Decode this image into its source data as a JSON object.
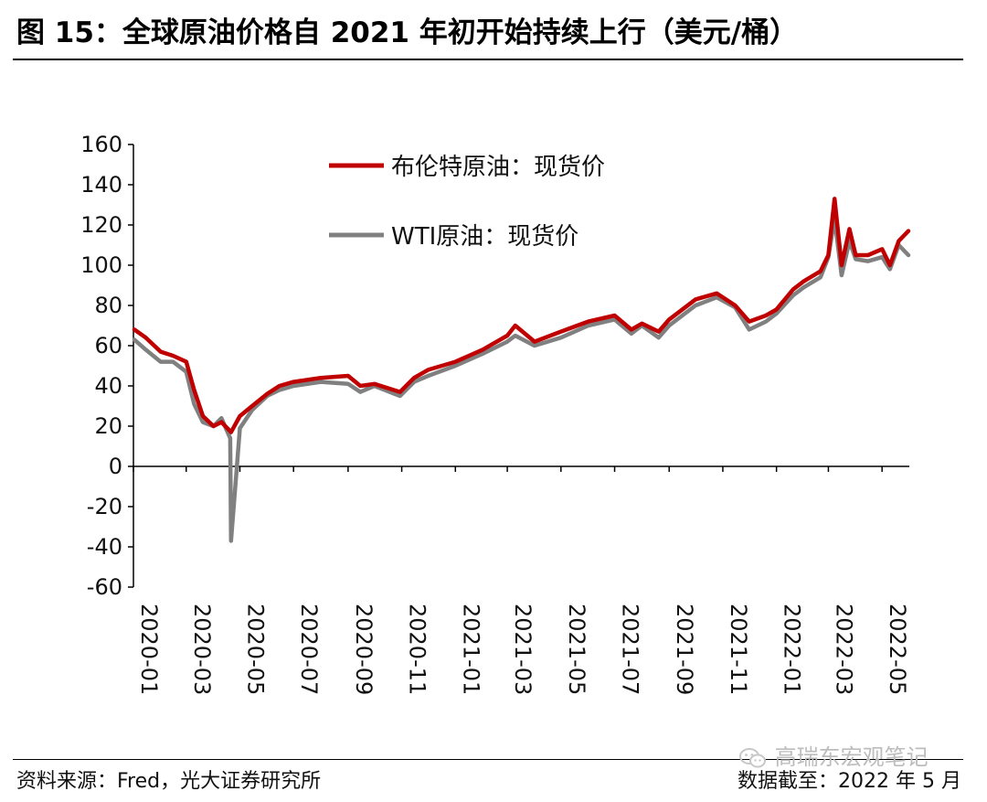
{
  "header": {
    "title": "图 15：全球原油价格自 2021 年初开始持续上行（美元/桶）"
  },
  "footer": {
    "source": "资料来源：Fred，光大证券研究所",
    "date_note": "数据截至：2022 年 5 月",
    "watermark": "高瑞东宏观笔记",
    "watermark_icon": "wechat-icon"
  },
  "colors": {
    "brent": "#c00000",
    "wti": "#808080"
  },
  "chart_data": {
    "type": "line",
    "title": "",
    "xlabel": "",
    "ylabel": "",
    "ylim": [
      -60,
      160
    ],
    "yticks": [
      "160",
      "140",
      "120",
      "100",
      "80",
      "60",
      "40",
      "20",
      "0",
      "-20",
      "-40",
      "-60"
    ],
    "xticks": [
      "2020-01",
      "2020-03",
      "2020-05",
      "2020-07",
      "2020-09",
      "2020-11",
      "2021-01",
      "2021-03",
      "2021-05",
      "2021-07",
      "2021-09",
      "2021-11",
      "2022-01",
      "2022-03",
      "2022-05"
    ],
    "legend_position": "top-left",
    "grid": false,
    "series": [
      {
        "name": "布伦特原油：现货价",
        "color": "#c00000",
        "x": [
          "2020-01-02",
          "2020-01-15",
          "2020-02-01",
          "2020-02-15",
          "2020-03-01",
          "2020-03-10",
          "2020-03-20",
          "2020-04-01",
          "2020-04-10",
          "2020-04-21",
          "2020-05-01",
          "2020-05-15",
          "2020-06-01",
          "2020-06-15",
          "2020-07-01",
          "2020-08-01",
          "2020-09-01",
          "2020-09-15",
          "2020-10-01",
          "2020-10-30",
          "2020-11-15",
          "2020-12-01",
          "2021-01-01",
          "2021-02-01",
          "2021-03-01",
          "2021-03-10",
          "2021-04-01",
          "2021-05-01",
          "2021-06-01",
          "2021-07-01",
          "2021-07-20",
          "2021-08-01",
          "2021-08-20",
          "2021-09-01",
          "2021-10-01",
          "2021-10-25",
          "2021-11-15",
          "2021-12-01",
          "2021-12-20",
          "2022-01-01",
          "2022-01-20",
          "2022-02-01",
          "2022-02-20",
          "2022-03-01",
          "2022-03-08",
          "2022-03-16",
          "2022-03-25",
          "2022-04-01",
          "2022-04-15",
          "2022-05-01",
          "2022-05-10",
          "2022-05-20",
          "2022-05-31"
        ],
        "values": [
          68,
          64,
          57,
          55,
          52,
          38,
          25,
          20,
          22,
          17,
          25,
          30,
          36,
          40,
          42,
          44,
          45,
          40,
          41,
          37,
          44,
          48,
          52,
          58,
          65,
          70,
          62,
          67,
          72,
          75,
          68,
          71,
          67,
          73,
          83,
          86,
          80,
          72,
          75,
          78,
          88,
          92,
          97,
          105,
          133,
          100,
          118,
          105,
          105,
          108,
          100,
          112,
          117
        ]
      },
      {
        "name": "WTI原油：现货价",
        "color": "#808080",
        "x": [
          "2020-01-02",
          "2020-01-15",
          "2020-02-01",
          "2020-02-15",
          "2020-03-01",
          "2020-03-10",
          "2020-03-20",
          "2020-04-01",
          "2020-04-10",
          "2020-04-20",
          "2020-04-21",
          "2020-05-01",
          "2020-05-15",
          "2020-06-01",
          "2020-06-15",
          "2020-07-01",
          "2020-08-01",
          "2020-09-01",
          "2020-09-15",
          "2020-10-01",
          "2020-10-30",
          "2020-11-15",
          "2020-12-01",
          "2021-01-01",
          "2021-02-01",
          "2021-03-01",
          "2021-03-10",
          "2021-04-01",
          "2021-05-01",
          "2021-06-01",
          "2021-07-01",
          "2021-07-20",
          "2021-08-01",
          "2021-08-20",
          "2021-09-01",
          "2021-10-01",
          "2021-10-25",
          "2021-11-15",
          "2021-12-01",
          "2021-12-20",
          "2022-01-01",
          "2022-01-20",
          "2022-02-01",
          "2022-02-20",
          "2022-03-01",
          "2022-03-08",
          "2022-03-16",
          "2022-03-25",
          "2022-04-01",
          "2022-04-15",
          "2022-05-01",
          "2022-05-10",
          "2022-05-20",
          "2022-05-31"
        ],
        "values": [
          63,
          58,
          52,
          52,
          47,
          31,
          22,
          20,
          24,
          14,
          -37,
          19,
          28,
          35,
          38,
          40,
          42,
          41,
          37,
          40,
          35,
          42,
          45,
          50,
          56,
          62,
          65,
          60,
          64,
          70,
          73,
          66,
          70,
          64,
          70,
          80,
          84,
          79,
          68,
          72,
          76,
          85,
          89,
          94,
          104,
          123,
          95,
          112,
          103,
          102,
          104,
          98,
          110,
          105
        ]
      }
    ]
  }
}
